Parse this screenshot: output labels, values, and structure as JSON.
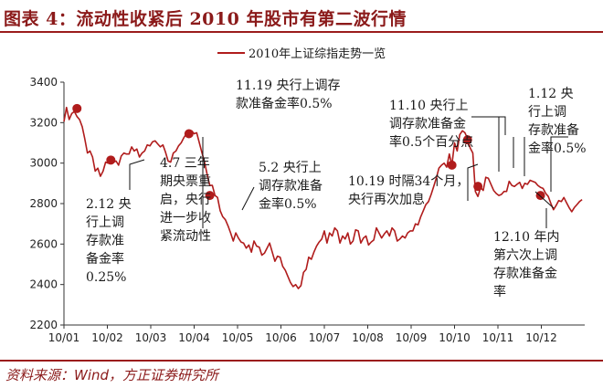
{
  "title": "图表 4：流动性收紧后 2010 年股市有第二波行情",
  "source": "资料来源：Wind，方正证券研究所",
  "colors": {
    "line": "#b01c1c",
    "accent": "#9b1c1c",
    "marker": "#b01c1c"
  },
  "chart_data": {
    "type": "line",
    "title": "",
    "xlabel": "",
    "ylabel": "",
    "ylim": [
      2200,
      3400
    ],
    "yticks": [
      2200,
      2400,
      2600,
      2800,
      3000,
      3200,
      3400
    ],
    "x_tick_labels": [
      "10/01",
      "10/02",
      "10/03",
      "10/04",
      "10/05",
      "10/06",
      "10/07",
      "10/08",
      "10/09",
      "10/10",
      "10/11",
      "10/12"
    ],
    "legend": {
      "position": "top-center"
    },
    "series": [
      {
        "name": "2010年上证综指走势一览",
        "x": [
          0.0,
          0.06,
          0.12,
          0.18,
          0.24,
          0.3,
          0.36,
          0.42,
          0.48,
          0.54,
          0.6,
          0.66,
          0.72,
          0.78,
          0.84,
          0.9,
          0.96,
          1.02,
          1.08,
          1.14,
          1.2,
          1.26,
          1.32,
          1.38,
          1.44,
          1.5,
          1.56,
          1.62,
          1.68,
          1.74,
          1.8,
          1.86,
          1.92,
          1.98,
          2.04,
          2.1,
          2.16,
          2.22,
          2.28,
          2.34,
          2.4,
          2.46,
          2.52,
          2.58,
          2.64,
          2.7,
          2.76,
          2.82,
          2.88,
          2.94,
          3.0,
          3.06,
          3.12,
          3.18,
          3.24,
          3.3,
          3.36,
          3.42,
          3.48,
          3.54,
          3.6,
          3.66,
          3.72,
          3.78,
          3.84,
          3.9,
          3.96,
          4.02,
          4.08,
          4.14,
          4.2,
          4.26,
          4.32,
          4.38,
          4.44,
          4.5,
          4.56,
          4.62,
          4.68,
          4.74,
          4.8,
          4.86,
          4.92,
          4.98,
          5.04,
          5.1,
          5.16,
          5.22,
          5.28,
          5.34,
          5.4,
          5.46,
          5.52,
          5.58,
          5.64,
          5.7,
          5.76,
          5.82,
          5.88,
          5.94,
          6.0,
          6.06,
          6.12,
          6.18,
          6.24,
          6.3,
          6.36,
          6.42,
          6.48,
          6.54,
          6.6,
          6.66,
          6.72,
          6.78,
          6.84,
          6.9,
          6.96,
          7.02,
          7.08,
          7.14,
          7.2,
          7.26,
          7.32,
          7.38,
          7.44,
          7.5,
          7.56,
          7.62,
          7.68,
          7.74,
          7.8,
          7.86,
          7.92,
          7.98,
          8.04,
          8.1,
          8.16,
          8.22,
          8.28,
          8.34,
          8.4,
          8.46,
          8.52,
          8.58,
          8.64,
          8.7,
          8.76,
          8.82,
          8.88,
          8.94,
          9.0,
          9.06,
          9.12,
          9.18,
          9.24,
          9.3,
          9.36,
          9.42,
          9.48,
          9.54,
          9.6,
          9.66,
          9.72,
          9.78,
          9.84,
          9.9,
          9.96,
          10.02,
          10.08,
          10.14,
          10.2,
          10.26,
          10.32,
          10.38,
          10.44,
          10.5,
          10.56,
          10.62,
          10.68,
          10.74,
          10.8,
          10.86,
          10.92,
          10.98,
          11.04,
          11.1,
          11.16,
          11.22,
          11.28,
          11.34,
          11.4,
          11.46,
          11.52,
          11.58,
          11.64,
          11.7,
          11.76,
          11.82,
          11.88,
          11.94
        ],
        "values": [
          3205,
          3275,
          3215,
          3245,
          3255,
          3230,
          3215,
          3180,
          3120,
          3050,
          3060,
          3030,
          2960,
          2975,
          2935,
          2960,
          3005,
          3000,
          3015,
          3005,
          3010,
          2990,
          3035,
          3050,
          3045,
          3045,
          3080,
          3060,
          3070,
          3030,
          3050,
          3060,
          3090,
          3085,
          3105,
          3110,
          3095,
          3080,
          3090,
          3055,
          3010,
          3005,
          3050,
          3060,
          3085,
          3100,
          3125,
          3145,
          3135,
          3160,
          3145,
          3150,
          3100,
          3050,
          3005,
          2945,
          2890,
          2890,
          2840,
          2830,
          2765,
          2735,
          2720,
          2690,
          2655,
          2615,
          2655,
          2630,
          2610,
          2605,
          2580,
          2595,
          2560,
          2615,
          2590,
          2585,
          2545,
          2555,
          2580,
          2605,
          2560,
          2515,
          2540,
          2535,
          2490,
          2470,
          2440,
          2410,
          2390,
          2400,
          2380,
          2395,
          2460,
          2475,
          2535,
          2525,
          2560,
          2590,
          2610,
          2625,
          2665,
          2605,
          2655,
          2640,
          2680,
          2665,
          2605,
          2640,
          2625,
          2655,
          2600,
          2615,
          2670,
          2665,
          2605,
          2630,
          2640,
          2595,
          2610,
          2620,
          2680,
          2655,
          2630,
          2650,
          2665,
          2640,
          2680,
          2665,
          2615,
          2625,
          2640,
          2630,
          2655,
          2665,
          2665,
          2700,
          2695,
          2735,
          2765,
          2795,
          2810,
          2845,
          2885,
          2925,
          2975,
          2990,
          3000,
          2980,
          3045,
          2990,
          3100,
          3060,
          3140,
          3160,
          3150,
          3120,
          3075,
          3050,
          2860,
          2835,
          2880,
          2865,
          2930,
          2925,
          2895,
          2865,
          2850,
          2840,
          2845,
          2860,
          2860,
          2910,
          2890,
          2885,
          2895,
          2905,
          2875,
          2900,
          2895,
          2915,
          2910,
          2905,
          2890,
          2880,
          2875,
          2850,
          2835,
          2800,
          2770,
          2790,
          2815,
          2810,
          2830,
          2805,
          2780,
          2760,
          2780,
          2795,
          2810,
          2820
        ]
      }
    ],
    "markers": [
      {
        "x": 0.3,
        "y": 3270
      },
      {
        "x": 1.08,
        "y": 3015
      },
      {
        "x": 2.88,
        "y": 3145
      },
      {
        "x": 3.36,
        "y": 2840
      },
      {
        "x": 8.94,
        "y": 2990
      },
      {
        "x": 9.3,
        "y": 3115
      },
      {
        "x": 9.54,
        "y": 2885
      },
      {
        "x": 10.98,
        "y": 2840
      }
    ],
    "annotations": [
      {
        "id": "a1",
        "lines": [
          "2.12 央",
          "行上调",
          "存款准",
          "备金率",
          "0.25%"
        ]
      },
      {
        "id": "a2",
        "lines": [
          "4.7 三年",
          "期央票重",
          "启，央行",
          "进一步收",
          "紧流动性"
        ]
      },
      {
        "id": "a3",
        "lines": [
          "5.2 央行上",
          "调存款准备",
          "金率0.5%"
        ]
      },
      {
        "id": "a4",
        "lines": [
          "11.19 央行上调存",
          "款准备金率0.5%"
        ]
      },
      {
        "id": "a5",
        "lines": [
          "10.19 时隔34个月，",
          "央行再次加息"
        ]
      },
      {
        "id": "a6",
        "lines": [
          "11.10 央行上",
          "调存款准备金",
          "率0.5个百分点"
        ]
      },
      {
        "id": "a7",
        "lines": [
          "1.12 央",
          "行上调",
          "存款准备",
          "金率0.5%"
        ]
      },
      {
        "id": "a8",
        "lines": [
          "12.10 年内",
          "第六次上调",
          "存款准备金",
          "率"
        ]
      }
    ]
  }
}
